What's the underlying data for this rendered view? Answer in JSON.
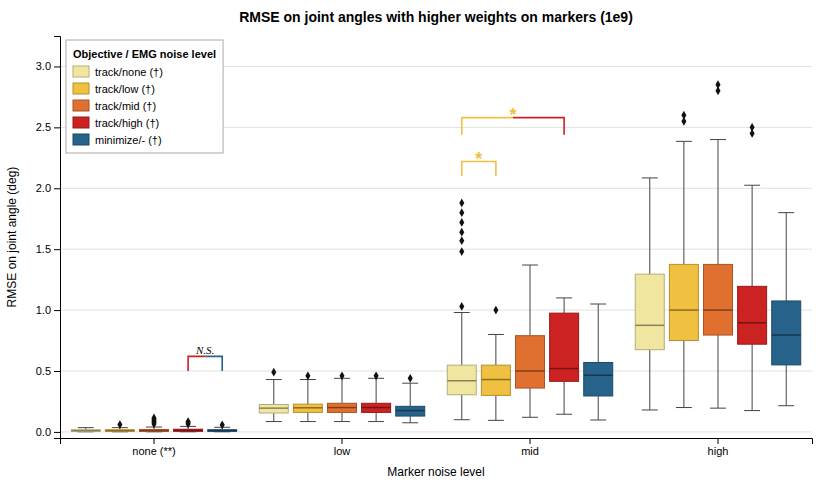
{
  "chart_data": {
    "type": "box",
    "title": "RMSE on joint angles with higher weights on markers (1e9)",
    "xlabel": "Marker noise level",
    "ylabel": "RMSE on joint angle (deg)",
    "categories": [
      "none (**)",
      "low",
      "mid",
      "high"
    ],
    "ylim": [
      -0.05,
      3.25
    ],
    "yticks": [
      {
        "value": 0,
        "label": "0.0"
      },
      0.5,
      {
        "value": 1,
        "label": "1.0"
      },
      1.5,
      {
        "value": 2,
        "label": "2.0"
      },
      2.5,
      {
        "value": 3,
        "label": "3.0"
      }
    ],
    "grid": true,
    "legend": "top-left",
    "legend_title": "Objective / EMG noise level",
    "series": [
      {
        "name": "track/none (†)",
        "color": "#f0e6a0",
        "values": [
          {
            "q1": 0.005,
            "median": 0.01,
            "q3": 0.018,
            "whislo": 0.001,
            "whishi": 0.035,
            "fliers": []
          },
          {
            "q1": 0.155,
            "median": 0.195,
            "q3": 0.225,
            "whislo": 0.085,
            "whishi": 0.43,
            "fliers": [
              0.49
            ]
          },
          {
            "q1": 0.305,
            "median": 0.42,
            "q3": 0.548,
            "whislo": 0.1,
            "whishi": 0.98,
            "fliers": [
              1.03,
              1.48,
              1.57,
              1.64,
              1.72,
              1.8,
              1.88
            ]
          },
          {
            "q1": 0.675,
            "median": 0.875,
            "q3": 1.295,
            "whislo": 0.18,
            "whishi": 2.085,
            "fliers": []
          }
        ]
      },
      {
        "name": "track/low (†)",
        "color": "#f0c040",
        "values": [
          {
            "q1": 0.005,
            "median": 0.01,
            "q3": 0.018,
            "whislo": 0.001,
            "whishi": 0.035,
            "fliers": [
              0.06
            ]
          },
          {
            "q1": 0.16,
            "median": 0.198,
            "q3": 0.228,
            "whislo": 0.085,
            "whishi": 0.43,
            "fliers": [
              0.46
            ]
          },
          {
            "q1": 0.3,
            "median": 0.43,
            "q3": 0.548,
            "whislo": 0.095,
            "whishi": 0.8,
            "fliers": [
              1.0
            ]
          },
          {
            "q1": 0.75,
            "median": 1.0,
            "q3": 1.375,
            "whislo": 0.2,
            "whishi": 2.385,
            "fliers": [
              2.55,
              2.6
            ]
          }
        ]
      },
      {
        "name": "track/mid (†)",
        "color": "#e07030",
        "values": [
          {
            "q1": 0.005,
            "median": 0.01,
            "q3": 0.02,
            "whislo": 0.001,
            "whishi": 0.04,
            "fliers": [
              0.065,
              0.075,
              0.085,
              0.095,
              0.105,
              0.115
            ]
          },
          {
            "q1": 0.16,
            "median": 0.2,
            "q3": 0.235,
            "whislo": 0.085,
            "whishi": 0.44,
            "fliers": [
              0.46
            ]
          },
          {
            "q1": 0.36,
            "median": 0.5,
            "q3": 0.79,
            "whislo": 0.12,
            "whishi": 1.37,
            "fliers": []
          },
          {
            "q1": 0.795,
            "median": 1.0,
            "q3": 1.375,
            "whislo": 0.195,
            "whishi": 2.4,
            "fliers": [
              2.8,
              2.85
            ]
          }
        ]
      },
      {
        "name": "track/high (†)",
        "color": "#cc2222",
        "values": [
          {
            "q1": 0.005,
            "median": 0.012,
            "q3": 0.022,
            "whislo": 0.001,
            "whishi": 0.045,
            "fliers": [
              0.065,
              0.075,
              0.085
            ]
          },
          {
            "q1": 0.16,
            "median": 0.2,
            "q3": 0.235,
            "whislo": 0.085,
            "whishi": 0.44,
            "fliers": [
              0.46
            ]
          },
          {
            "q1": 0.415,
            "median": 0.52,
            "q3": 0.975,
            "whislo": 0.145,
            "whishi": 1.1,
            "fliers": []
          },
          {
            "q1": 0.72,
            "median": 0.895,
            "q3": 1.195,
            "whislo": 0.175,
            "whishi": 2.025,
            "fliers": [
              2.45,
              2.5
            ]
          }
        ]
      },
      {
        "name": "minimize/- (†)",
        "color": "#27628a",
        "values": [
          {
            "q1": 0.005,
            "median": 0.01,
            "q3": 0.018,
            "whislo": 0.001,
            "whishi": 0.038,
            "fliers": [
              0.058
            ]
          },
          {
            "q1": 0.13,
            "median": 0.175,
            "q3": 0.21,
            "whislo": 0.075,
            "whishi": 0.4,
            "fliers": [
              0.44
            ]
          },
          {
            "q1": 0.295,
            "median": 0.465,
            "q3": 0.57,
            "whislo": 0.098,
            "whishi": 1.05,
            "fliers": []
          },
          {
            "q1": 0.55,
            "median": 0.795,
            "q3": 1.075,
            "whislo": 0.215,
            "whishi": 1.8,
            "fliers": []
          }
        ]
      }
    ],
    "annotations": [
      {
        "text": "N.S.",
        "category": "none (**)",
        "from": "track/high (†)",
        "to": "minimize/- (†)",
        "y_base": 0.5,
        "y_top": 0.62,
        "colors": [
          "#cc2222",
          "#27628a"
        ],
        "color": "#000000"
      },
      {
        "text": "*",
        "category": "mid",
        "from": "track/none (†)",
        "to": "track/low (†)",
        "y_base": 2.1,
        "y_top": 2.22,
        "colors": [
          "#f0c040",
          "#f0c040"
        ],
        "color": "#f0c040"
      },
      {
        "text": "*",
        "category": "mid",
        "from": "track/none (†)",
        "to": "track/high (†)",
        "y_base": 2.44,
        "y_top": 2.58,
        "colors": [
          "#f0c040",
          "#cc2222"
        ],
        "color": "#f0c040"
      }
    ]
  }
}
